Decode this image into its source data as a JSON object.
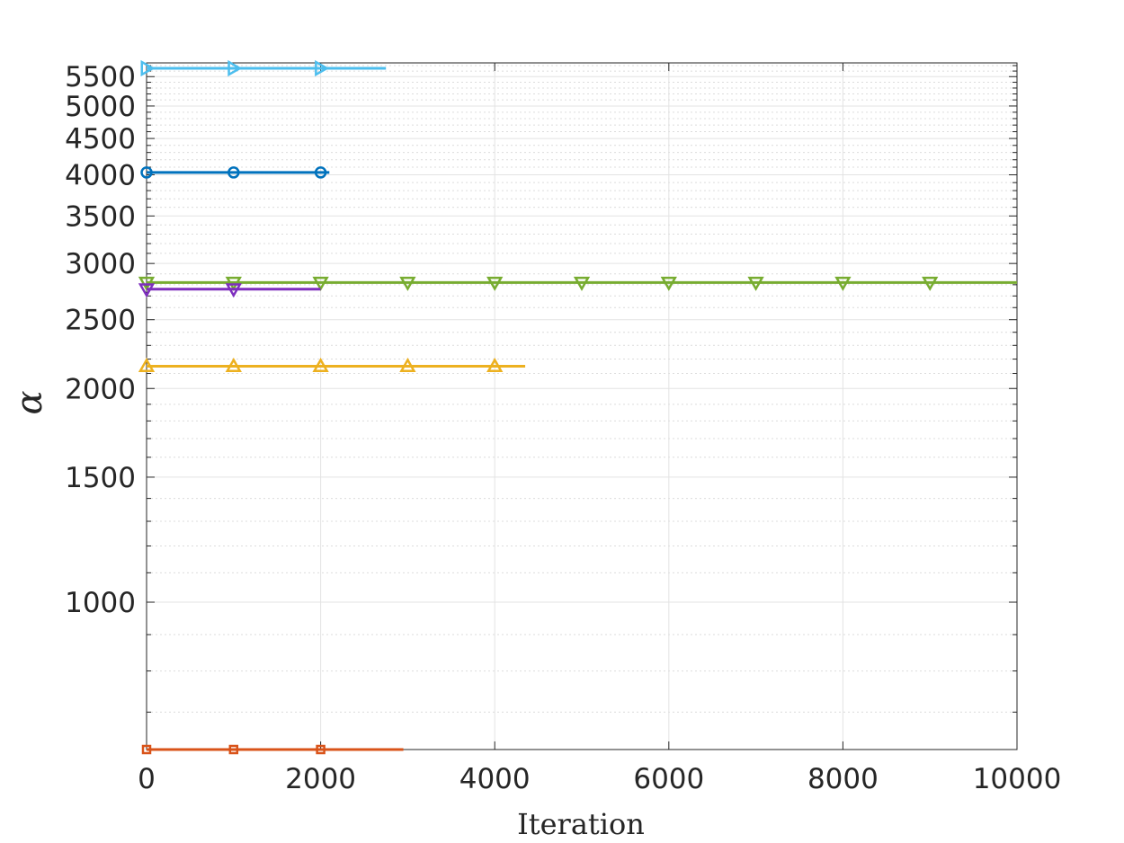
{
  "chart_data": {
    "type": "line",
    "title": "",
    "xlabel": "Iteration",
    "ylabel": "α",
    "xlim": [
      0,
      10000
    ],
    "ylim": [
      620,
      5750
    ],
    "y_scale": "log",
    "grid": true,
    "minor_grid": true,
    "x_ticks": [
      0,
      2000,
      4000,
      6000,
      8000,
      10000
    ],
    "x_tick_labels": [
      "0",
      "2000",
      "4000",
      "6000",
      "8000",
      "10000"
    ],
    "y_ticks": [
      1000,
      1500,
      2000,
      2500,
      3000,
      3500,
      4000,
      4500,
      5000,
      5500
    ],
    "y_tick_labels": [
      "1000",
      "1500",
      "2000",
      "2500",
      "3000",
      "3500",
      "4000",
      "4500",
      "5000",
      "5500"
    ],
    "series": [
      {
        "marker": "triangle-right",
        "color": "#4DBEEE",
        "x_end": 2750,
        "value": 5650,
        "marker_x": [
          0,
          1000,
          2000
        ]
      },
      {
        "marker": "circle",
        "color": "#0072BD",
        "x_end": 2100,
        "value": 4030,
        "marker_x": [
          0,
          1000,
          2000
        ]
      },
      {
        "marker": "triangle-down",
        "color": "#77AC30",
        "x_end": 10000,
        "value": 2820,
        "marker_x": [
          0,
          1000,
          2000,
          3000,
          4000,
          5000,
          6000,
          7000,
          8000,
          9000
        ]
      },
      {
        "marker": "triangle-down",
        "color": "#7E2FBE",
        "x_end": 2000,
        "value": 2760,
        "marker_x": [
          0,
          1000
        ]
      },
      {
        "marker": "triangle-up",
        "color": "#EDB120",
        "x_end": 4350,
        "value": 2150,
        "marker_x": [
          0,
          1000,
          2000,
          3000,
          4000
        ]
      },
      {
        "marker": "square",
        "color": "#D95319",
        "x_end": 2950,
        "value": 620,
        "marker_x": [
          0,
          1000,
          2000
        ]
      }
    ]
  }
}
